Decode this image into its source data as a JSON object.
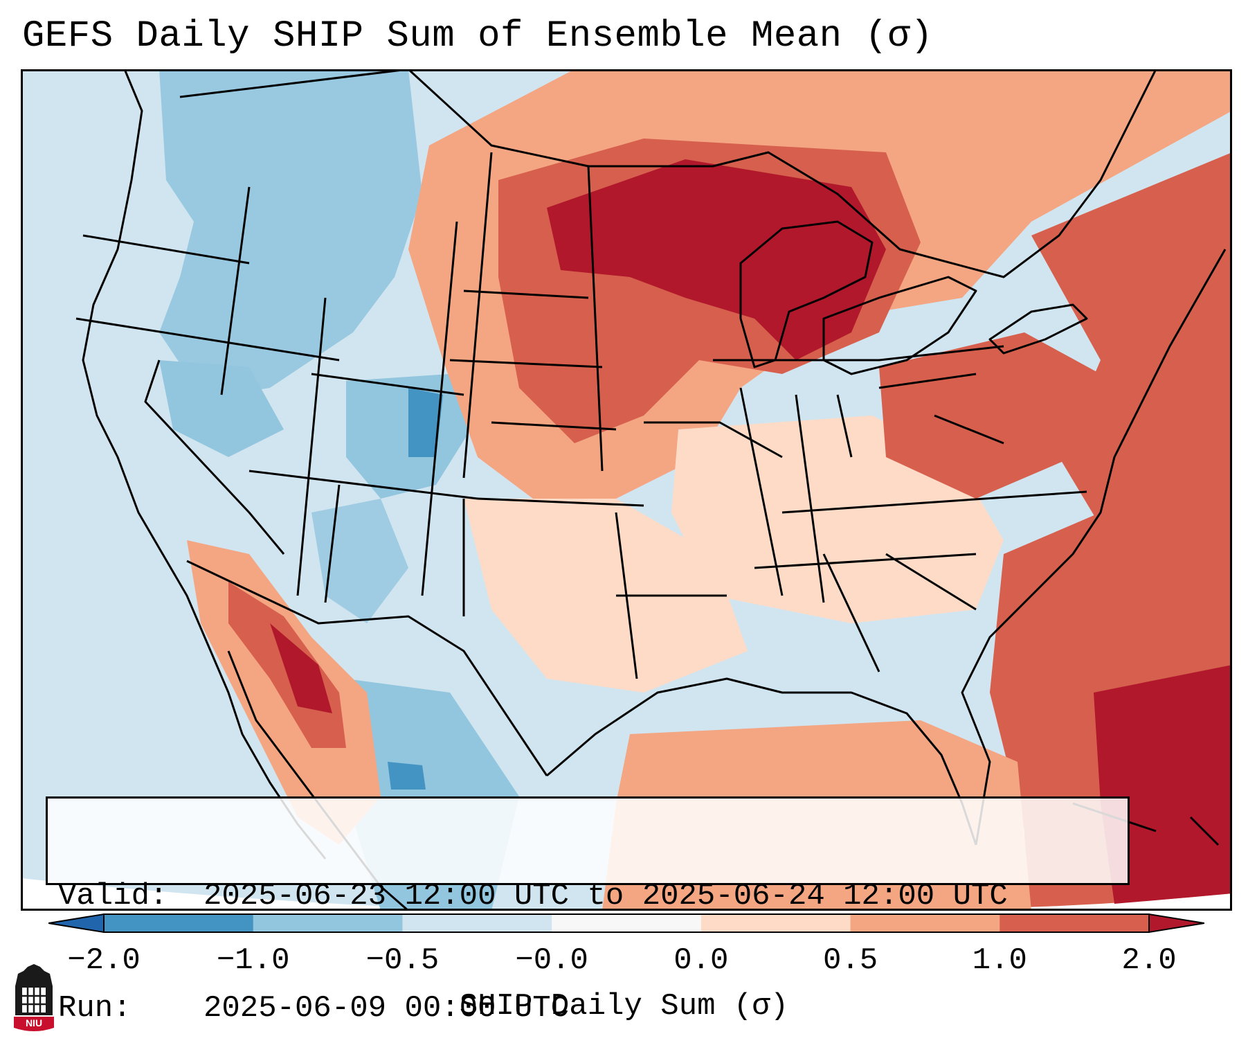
{
  "title": "GEFS Daily SHIP Sum of Ensemble Mean (σ)",
  "info": {
    "valid_key": "Valid:",
    "valid_value": "2025-06-23 12:00 UTC to 2025-06-24 12:00 UTC",
    "run_key": "Run:",
    "run_value": "2025-06-09 00:00 UTC"
  },
  "colorbar": {
    "label": "SHIP Daily Sum (σ)",
    "ticks": [
      "−2.0",
      "−1.0",
      "−0.5",
      "−0.0",
      "0.0",
      "0.5",
      "1.0",
      "2.0"
    ],
    "bins": [
      "#4393c3",
      "#92c5de",
      "#d1e5f0",
      "#f7f7f7",
      "#fddbc7",
      "#f4a582",
      "#d6604d"
    ],
    "extend_low": "#2166ac",
    "extend_high": "#b2182b"
  },
  "map": {
    "ocean_color": "#d1e5f0",
    "regions": [
      {
        "name": "pacific-northwest",
        "level": -1.0
      },
      {
        "name": "intermountain-west",
        "level": -0.5
      },
      {
        "name": "colorado-rockies",
        "level": -2.0
      },
      {
        "name": "northern-plains",
        "level": 1.5
      },
      {
        "name": "upper-midwest-great-lakes",
        "level": 2.0
      },
      {
        "name": "central-plains",
        "level": 1.0
      },
      {
        "name": "northeast",
        "level": 1.0
      },
      {
        "name": "southern-california-baja",
        "level": 1.5
      },
      {
        "name": "gulf-of-mexico",
        "level": 0.5
      },
      {
        "name": "western-atlantic",
        "level": 1.5
      }
    ]
  },
  "logo": {
    "text": "NIU",
    "color": "#c8102e"
  }
}
